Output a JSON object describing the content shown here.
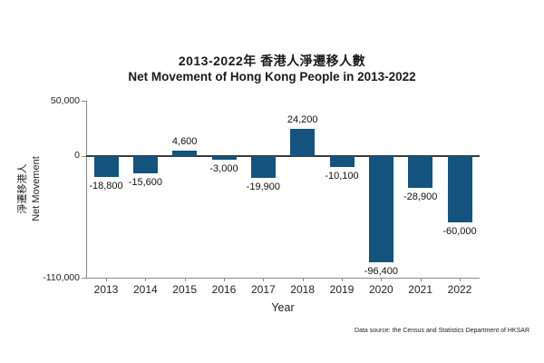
{
  "chart": {
    "title_zh": "2013-2022年 香港人淨遷移人數",
    "title_en": "Net Movement of Hong Kong People in 2013-2022",
    "y_axis_title_zh": "淨遷移港人",
    "y_axis_title_en": "Net Movement",
    "x_axis_title": "Year",
    "source": "Data source: the Census and Statistics Department of HKSAR",
    "bar_color": "#14537E"
  },
  "chart_data": {
    "type": "bar",
    "title": "2013-2022年 香港人淨遷移人數 / Net Movement of Hong Kong People in 2013-2022",
    "xlabel": "Year",
    "ylabel": "淨遷移港人 Net Movement",
    "categories": [
      "2013",
      "2014",
      "2015",
      "2016",
      "2017",
      "2018",
      "2019",
      "2020",
      "2021",
      "2022"
    ],
    "values": [
      -18800,
      -15600,
      4600,
      -3000,
      -19900,
      24200,
      -10100,
      -96400,
      -28900,
      -60000
    ],
    "value_labels": [
      "-18,800",
      "-15,600",
      "4,600",
      "-3,000",
      "-19,900",
      "24,200",
      "-10,100",
      "-96,400",
      "-28,900",
      "-60,000"
    ],
    "ylim": [
      -110000,
      50000
    ],
    "y_ticks": [
      {
        "value": 50000,
        "label": "50,000"
      },
      {
        "value": 0,
        "label": "0"
      },
      {
        "value": -110000,
        "label": "-110,000"
      }
    ],
    "grid": false,
    "legend": null,
    "bar_color": "#14537E"
  }
}
